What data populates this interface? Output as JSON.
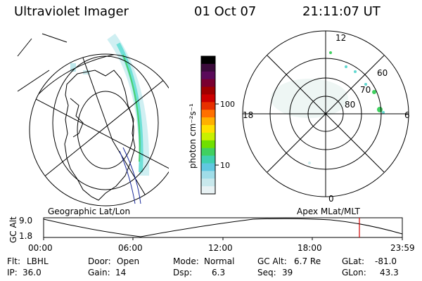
{
  "header": {
    "instrument": "Ultraviolet Imager",
    "date": "01 Oct 07",
    "time": "21:11:07 UT"
  },
  "colorbar": {
    "unit_label": "photon cm⁻²s⁻¹",
    "ticks": [
      "100",
      "10"
    ],
    "colors": [
      "#000000",
      "#3a0a3a",
      "#5a0a5a",
      "#7a0030",
      "#a00000",
      "#cc0000",
      "#e83000",
      "#ff7000",
      "#ffb000",
      "#ffe000",
      "#c8f000",
      "#70e000",
      "#40d060",
      "#40d0b0",
      "#60c8e0",
      "#a0dde8",
      "#c8e8ec",
      "#e8f2f4"
    ]
  },
  "polar_plot": {
    "labels": {
      "top": "12",
      "bottom": "0",
      "left": "18",
      "right": "6"
    },
    "lat_labels": [
      "60",
      "70",
      "80"
    ]
  },
  "map_labels": {
    "left": "Geographic Lat/Lon",
    "right": "Apex MLat/MLT"
  },
  "timeline": {
    "ylabel": "GC Alt",
    "y_ticks": [
      "9.0",
      "1.8"
    ],
    "x_ticks": [
      "00:00",
      "06:00",
      "12:00",
      "18:00",
      "23:59"
    ],
    "marker_color": "#d00000"
  },
  "info": {
    "row1": [
      {
        "label": "Flt:",
        "value": "LBHL"
      },
      {
        "label": "Door:",
        "value": "Open"
      },
      {
        "label": "Mode:",
        "value": "Normal"
      },
      {
        "label": "GC Alt:",
        "value": "6.7 Re"
      },
      {
        "label": "GLat:",
        "value": "-81.0"
      }
    ],
    "row2": [
      {
        "label": "IP:",
        "value": "36.0"
      },
      {
        "label": "Gain:",
        "value": "14"
      },
      {
        "label": "Dsp:",
        "value": "6.3"
      },
      {
        "label": "Seq:",
        "value": "39"
      },
      {
        "label": "GLon:",
        "value": "43.3"
      }
    ]
  }
}
